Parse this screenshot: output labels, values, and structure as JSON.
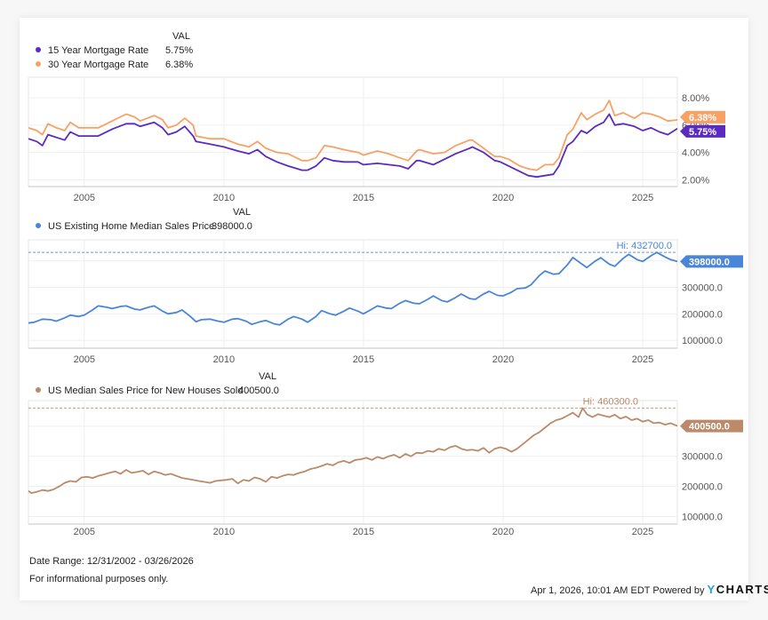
{
  "chart_data": [
    {
      "type": "line",
      "panel": "mortgage",
      "value_header": "VAL",
      "x_ticks": [
        "2005",
        "2010",
        "2015",
        "2020",
        "2025"
      ],
      "x_range": [
        2003.0,
        2026.24
      ],
      "ylim": [
        1.5,
        9.5
      ],
      "y_ticks": [
        {
          "v": 2,
          "label": "2.00%"
        },
        {
          "v": 4,
          "label": "4.00%"
        },
        {
          "v": 6,
          "label": "6.00%"
        },
        {
          "v": 8,
          "label": "8.00%"
        }
      ],
      "grid": true,
      "legend_position": "top-left",
      "series": [
        {
          "name": "15 Year Mortgage Rate",
          "value_label": "5.75%",
          "color": "#5b2bc1",
          "last_value": 5.75,
          "x": [
            2003.0,
            2003.3,
            2003.5,
            2003.7,
            2004.0,
            2004.3,
            2004.5,
            2004.8,
            2005.0,
            2005.5,
            2006.0,
            2006.5,
            2006.8,
            2007.0,
            2007.5,
            2007.8,
            2008.0,
            2008.3,
            2008.6,
            2008.9,
            2009.0,
            2009.5,
            2010.0,
            2010.5,
            2010.9,
            2011.2,
            2011.5,
            2011.9,
            2012.3,
            2012.8,
            2013.0,
            2013.3,
            2013.6,
            2013.9,
            2014.3,
            2014.8,
            2015.0,
            2015.5,
            2015.9,
            2016.3,
            2016.6,
            2016.9,
            2017.0,
            2017.5,
            2017.9,
            2018.3,
            2018.8,
            2018.9,
            2019.3,
            2019.7,
            2019.9,
            2020.2,
            2020.6,
            2020.9,
            2021.2,
            2021.5,
            2021.8,
            2022.0,
            2022.3,
            2022.5,
            2022.8,
            2023.0,
            2023.3,
            2023.6,
            2023.8,
            2024.0,
            2024.3,
            2024.7,
            2025.0,
            2025.3,
            2025.6,
            2025.9,
            2026.24
          ],
          "y": [
            5.0,
            4.8,
            4.5,
            5.3,
            5.1,
            4.9,
            5.5,
            5.2,
            5.2,
            5.2,
            5.7,
            6.1,
            6.1,
            5.9,
            6.2,
            5.8,
            5.3,
            5.5,
            5.9,
            5.2,
            4.8,
            4.6,
            4.4,
            4.1,
            3.9,
            4.2,
            3.7,
            3.3,
            3.0,
            2.7,
            2.7,
            3.0,
            3.6,
            3.4,
            3.3,
            3.3,
            3.1,
            3.2,
            3.1,
            3.0,
            2.8,
            3.4,
            3.4,
            3.1,
            3.5,
            3.9,
            4.3,
            4.4,
            4.0,
            3.4,
            3.3,
            3.0,
            2.6,
            2.3,
            2.2,
            2.3,
            2.4,
            3.0,
            4.5,
            4.8,
            5.6,
            5.4,
            5.9,
            6.2,
            6.8,
            6.0,
            6.1,
            5.9,
            5.6,
            5.8,
            5.5,
            5.3,
            5.75
          ]
        },
        {
          "name": "30 Year Mortgage Rate",
          "value_label": "6.38%",
          "color": "#f9a165",
          "last_value": 6.38,
          "x": [
            2003.0,
            2003.3,
            2003.5,
            2003.7,
            2004.0,
            2004.3,
            2004.5,
            2004.8,
            2005.0,
            2005.5,
            2006.0,
            2006.5,
            2006.8,
            2007.0,
            2007.5,
            2007.8,
            2008.0,
            2008.3,
            2008.6,
            2008.9,
            2009.0,
            2009.5,
            2010.0,
            2010.5,
            2010.9,
            2011.2,
            2011.5,
            2011.9,
            2012.3,
            2012.8,
            2013.0,
            2013.3,
            2013.6,
            2013.9,
            2014.3,
            2014.8,
            2015.0,
            2015.5,
            2015.9,
            2016.3,
            2016.6,
            2016.9,
            2017.0,
            2017.5,
            2017.9,
            2018.3,
            2018.8,
            2018.9,
            2019.3,
            2019.7,
            2019.9,
            2020.2,
            2020.6,
            2020.9,
            2021.2,
            2021.5,
            2021.8,
            2022.0,
            2022.3,
            2022.5,
            2022.8,
            2023.0,
            2023.3,
            2023.6,
            2023.8,
            2024.0,
            2024.3,
            2024.7,
            2025.0,
            2025.3,
            2025.6,
            2025.9,
            2026.24
          ],
          "y": [
            5.8,
            5.6,
            5.3,
            6.1,
            5.8,
            5.6,
            6.2,
            5.8,
            5.8,
            5.8,
            6.3,
            6.8,
            6.6,
            6.3,
            6.7,
            6.4,
            5.8,
            6.0,
            6.5,
            6.0,
            5.2,
            5.0,
            5.0,
            4.6,
            4.4,
            4.8,
            4.3,
            4.0,
            3.9,
            3.4,
            3.4,
            3.6,
            4.5,
            4.4,
            4.2,
            4.0,
            3.8,
            4.1,
            3.9,
            3.6,
            3.4,
            4.1,
            4.2,
            3.9,
            4.0,
            4.5,
            4.9,
            4.9,
            4.3,
            3.7,
            3.7,
            3.5,
            3.0,
            2.8,
            2.7,
            3.1,
            3.1,
            3.6,
            5.3,
            5.7,
            6.9,
            6.4,
            6.8,
            7.1,
            7.8,
            6.7,
            6.9,
            6.5,
            6.9,
            6.8,
            6.6,
            6.3,
            6.38
          ]
        }
      ]
    },
    {
      "type": "line",
      "panel": "existing-home",
      "value_header": "VAL",
      "x_ticks": [
        "2005",
        "2010",
        "2015",
        "2020",
        "2025"
      ],
      "x_range": [
        2003.0,
        2026.24
      ],
      "ylim": [
        70000,
        480000
      ],
      "y_ticks": [
        {
          "v": 100000,
          "label": "100000.0"
        },
        {
          "v": 200000,
          "label": "200000.0"
        },
        {
          "v": 300000,
          "label": "300000.0"
        },
        {
          "v": 400000,
          "label": "400000.0"
        }
      ],
      "grid": true,
      "legend_position": "top-left",
      "high": {
        "label": "Hi: 432700.0",
        "value": 432700
      },
      "series": [
        {
          "name": "US Existing Home Median Sales Price",
          "value_label": "398000.0",
          "color": "#4a86d8",
          "last_value": 398000,
          "x": [
            2003.0,
            2003.2,
            2003.5,
            2003.8,
            2004.0,
            2004.3,
            2004.5,
            2004.8,
            2005.0,
            2005.3,
            2005.5,
            2005.8,
            2006.0,
            2006.3,
            2006.5,
            2006.8,
            2007.0,
            2007.3,
            2007.5,
            2007.8,
            2008.0,
            2008.3,
            2008.5,
            2008.8,
            2009.0,
            2009.2,
            2009.5,
            2009.8,
            2010.0,
            2010.3,
            2010.5,
            2010.8,
            2011.0,
            2011.3,
            2011.5,
            2011.8,
            2012.0,
            2012.3,
            2012.5,
            2012.8,
            2013.0,
            2013.3,
            2013.5,
            2013.8,
            2014.0,
            2014.3,
            2014.5,
            2014.8,
            2015.0,
            2015.3,
            2015.5,
            2015.8,
            2016.0,
            2016.3,
            2016.5,
            2016.8,
            2017.0,
            2017.3,
            2017.5,
            2017.8,
            2018.0,
            2018.3,
            2018.5,
            2018.8,
            2019.0,
            2019.3,
            2019.5,
            2019.8,
            2020.0,
            2020.3,
            2020.5,
            2020.8,
            2021.0,
            2021.3,
            2021.5,
            2021.8,
            2022.0,
            2022.3,
            2022.5,
            2022.8,
            2023.0,
            2023.3,
            2023.5,
            2023.8,
            2024.0,
            2024.3,
            2024.5,
            2024.8,
            2025.0,
            2025.3,
            2025.5,
            2025.8,
            2026.0,
            2026.24
          ],
          "y": [
            165000,
            168000,
            180000,
            178000,
            172000,
            185000,
            195000,
            190000,
            195000,
            215000,
            230000,
            225000,
            220000,
            228000,
            230000,
            218000,
            215000,
            225000,
            230000,
            210000,
            200000,
            205000,
            215000,
            190000,
            170000,
            178000,
            180000,
            172000,
            168000,
            180000,
            182000,
            172000,
            160000,
            170000,
            175000,
            162000,
            158000,
            180000,
            190000,
            180000,
            168000,
            190000,
            212000,
            200000,
            195000,
            210000,
            222000,
            210000,
            200000,
            218000,
            230000,
            222000,
            220000,
            240000,
            250000,
            240000,
            238000,
            255000,
            268000,
            250000,
            245000,
            262000,
            275000,
            258000,
            255000,
            275000,
            285000,
            270000,
            268000,
            282000,
            295000,
            298000,
            310000,
            345000,
            362000,
            350000,
            352000,
            385000,
            413000,
            390000,
            375000,
            400000,
            412000,
            388000,
            380000,
            410000,
            425000,
            405000,
            398000,
            420000,
            432700,
            415000,
            405000,
            398000
          ]
        }
      ]
    },
    {
      "type": "line",
      "panel": "new-houses",
      "value_header": "VAL",
      "x_ticks": [
        "2005",
        "2010",
        "2015",
        "2020",
        "2025"
      ],
      "x_range": [
        2003.0,
        2026.24
      ],
      "ylim": [
        75000,
        485000
      ],
      "y_ticks": [
        {
          "v": 100000,
          "label": "100000.0"
        },
        {
          "v": 200000,
          "label": "200000.0"
        },
        {
          "v": 300000,
          "label": "300000.0"
        },
        {
          "v": 400000,
          "label": "400000.0"
        }
      ],
      "grid": true,
      "legend_position": "top-left",
      "high": {
        "label": "Hi: 460300.0",
        "value": 460300
      },
      "series": [
        {
          "name": "US Median Sales Price for New Houses Sold",
          "value_label": "400500.0",
          "color": "#bc8a6a",
          "last_value": 400500,
          "x": [
            2003.0,
            2003.1,
            2003.3,
            2003.5,
            2003.7,
            2003.9,
            2004.1,
            2004.3,
            2004.5,
            2004.7,
            2004.9,
            2005.1,
            2005.3,
            2005.5,
            2005.7,
            2005.9,
            2006.1,
            2006.3,
            2006.5,
            2006.7,
            2006.9,
            2007.1,
            2007.3,
            2007.5,
            2007.7,
            2007.9,
            2008.1,
            2008.3,
            2008.5,
            2008.7,
            2008.9,
            2009.1,
            2009.3,
            2009.5,
            2009.7,
            2009.9,
            2010.1,
            2010.3,
            2010.5,
            2010.7,
            2010.9,
            2011.1,
            2011.3,
            2011.5,
            2011.7,
            2011.9,
            2012.1,
            2012.3,
            2012.5,
            2012.7,
            2012.9,
            2013.1,
            2013.3,
            2013.5,
            2013.7,
            2013.9,
            2014.1,
            2014.3,
            2014.5,
            2014.7,
            2014.9,
            2015.1,
            2015.3,
            2015.5,
            2015.7,
            2015.9,
            2016.1,
            2016.3,
            2016.5,
            2016.7,
            2016.9,
            2017.1,
            2017.3,
            2017.5,
            2017.7,
            2017.9,
            2018.1,
            2018.3,
            2018.5,
            2018.7,
            2018.9,
            2019.1,
            2019.3,
            2019.5,
            2019.7,
            2019.9,
            2020.1,
            2020.3,
            2020.5,
            2020.7,
            2020.9,
            2021.1,
            2021.3,
            2021.5,
            2021.7,
            2021.9,
            2022.1,
            2022.3,
            2022.5,
            2022.7,
            2022.85,
            2023.0,
            2023.2,
            2023.4,
            2023.6,
            2023.8,
            2024.0,
            2024.2,
            2024.4,
            2024.6,
            2024.8,
            2025.0,
            2025.2,
            2025.4,
            2025.6,
            2025.8,
            2026.0,
            2026.24
          ],
          "y": [
            185000,
            178000,
            182000,
            188000,
            185000,
            190000,
            200000,
            212000,
            218000,
            215000,
            230000,
            232000,
            228000,
            235000,
            240000,
            245000,
            250000,
            242000,
            255000,
            245000,
            248000,
            252000,
            240000,
            250000,
            245000,
            238000,
            242000,
            235000,
            228000,
            225000,
            222000,
            218000,
            215000,
            212000,
            218000,
            220000,
            222000,
            225000,
            210000,
            222000,
            218000,
            230000,
            225000,
            215000,
            232000,
            228000,
            235000,
            240000,
            238000,
            245000,
            250000,
            258000,
            262000,
            268000,
            275000,
            270000,
            280000,
            285000,
            278000,
            288000,
            290000,
            295000,
            288000,
            298000,
            292000,
            300000,
            305000,
            295000,
            308000,
            300000,
            312000,
            310000,
            318000,
            315000,
            325000,
            320000,
            330000,
            335000,
            325000,
            320000,
            322000,
            318000,
            328000,
            312000,
            325000,
            330000,
            325000,
            315000,
            325000,
            340000,
            355000,
            370000,
            380000,
            395000,
            410000,
            420000,
            425000,
            435000,
            445000,
            430000,
            460300,
            440000,
            430000,
            440000,
            435000,
            430000,
            438000,
            425000,
            432000,
            420000,
            425000,
            415000,
            420000,
            410000,
            412000,
            405000,
            410000,
            400500
          ]
        }
      ]
    }
  ],
  "footer": {
    "date_range": "Date Range: 12/31/2002 - 03/26/2026",
    "disclaimer": "For informational purposes only.",
    "timestamp": "Apr 1, 2026, 10:01 AM EDT Powered by",
    "brand_y": "Y",
    "brand_rest": "CHARTS"
  }
}
